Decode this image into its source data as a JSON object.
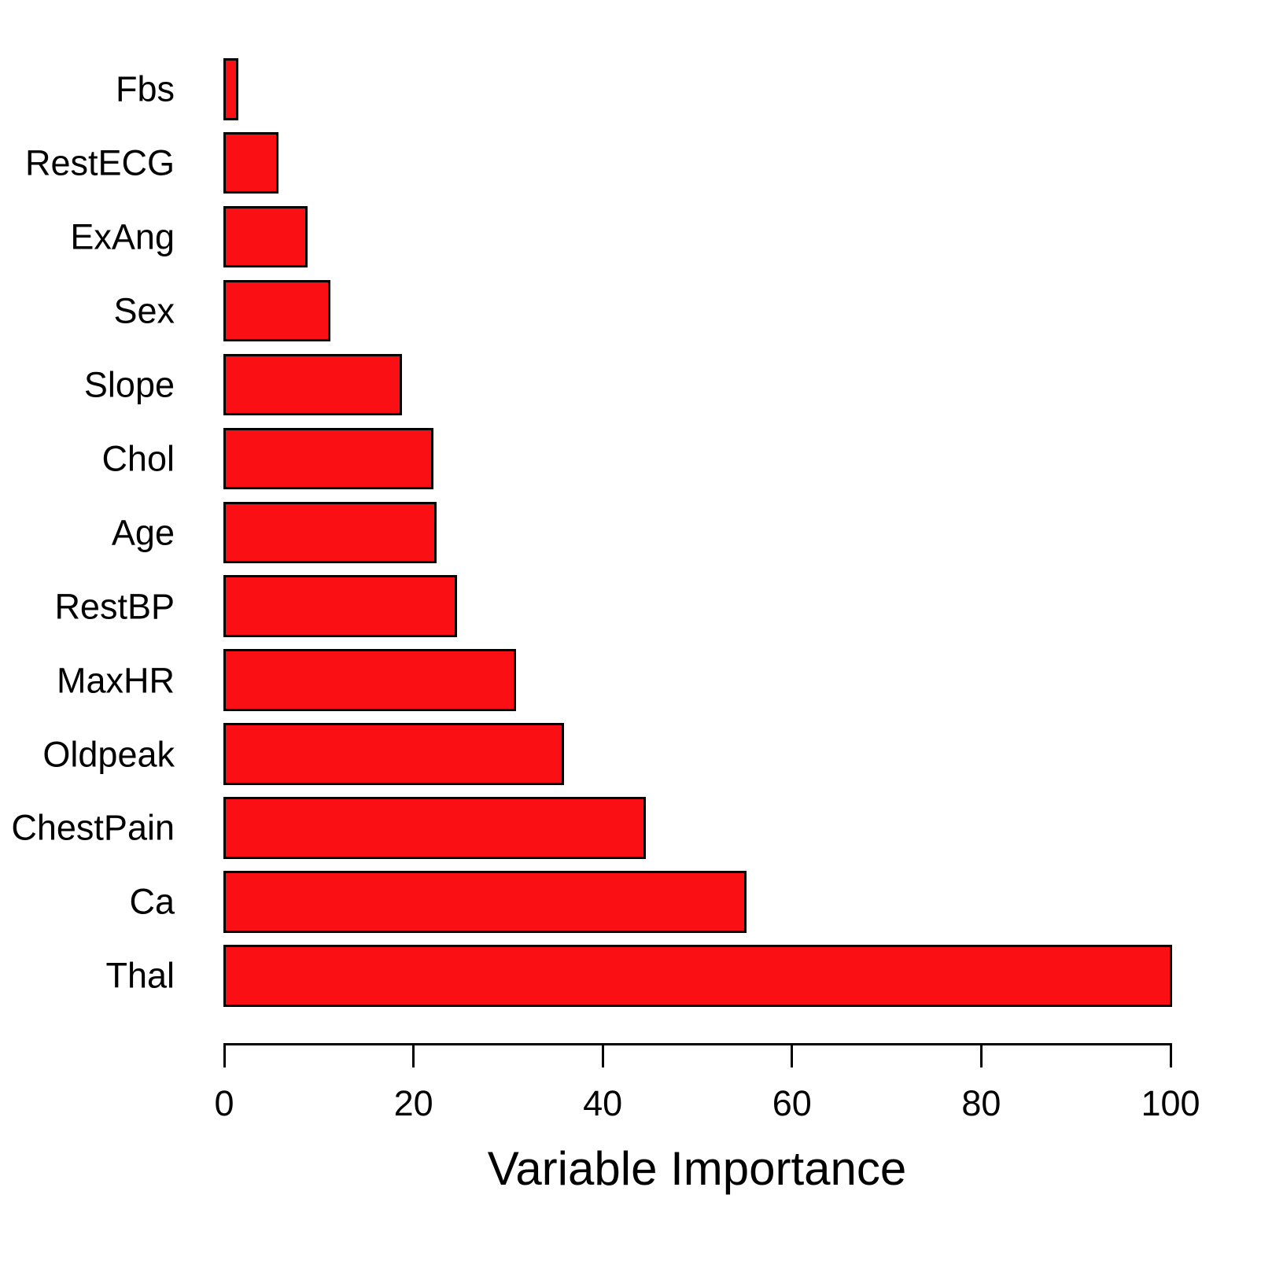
{
  "chart_data": {
    "type": "bar",
    "orientation": "horizontal",
    "title": "",
    "xlabel": "Variable Importance",
    "ylabel": "",
    "categories": [
      "Fbs",
      "RestECG",
      "ExAng",
      "Sex",
      "Slope",
      "Chol",
      "Age",
      "RestBP",
      "MaxHR",
      "Oldpeak",
      "ChestPain",
      "Ca",
      "Thal"
    ],
    "values": [
      1.4,
      5.6,
      8.7,
      11.1,
      18.7,
      22.0,
      22.3,
      24.5,
      30.7,
      35.8,
      44.4,
      55.1,
      100
    ],
    "xlim": [
      0,
      100
    ],
    "xticks": [
      0,
      20,
      40,
      60,
      80,
      100
    ],
    "grid": false,
    "legend": null,
    "bar_fill_color": "#FA0F14",
    "bar_border_color": "#000000",
    "axis_color": "#000000",
    "text_color": "#000000",
    "background_color": "#FFFFFF"
  }
}
